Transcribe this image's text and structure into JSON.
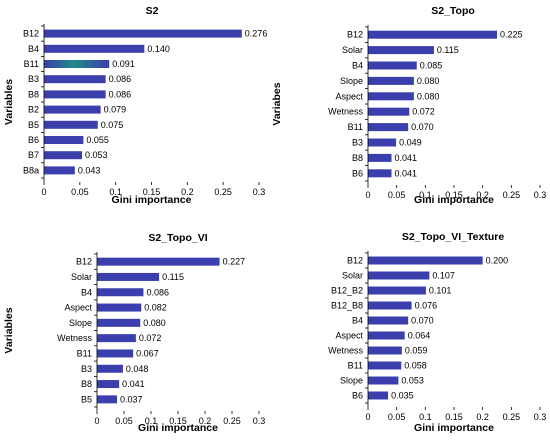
{
  "chart_data": [
    {
      "type": "bar",
      "orientation": "horizontal",
      "title": "S2",
      "xlabel": "Gini importance",
      "ylabel": "Variables",
      "xlim": [
        0,
        0.3
      ],
      "xticks": [
        "0",
        "0.05",
        "0.1",
        "0.15",
        "0.2",
        "0.25",
        "0.3"
      ],
      "grid": false,
      "categories": [
        "B12",
        "B4",
        "B11",
        "B3",
        "B8",
        "B2",
        "B5",
        "B6",
        "B7",
        "B8a"
      ],
      "values": [
        0.276,
        0.14,
        0.091,
        0.086,
        0.086,
        0.079,
        0.075,
        0.055,
        0.053,
        0.043
      ],
      "labels": [
        "0.276",
        "0.140",
        "0.091",
        "0.086",
        "0.086",
        "0.079",
        "0.075",
        "0.055",
        "0.053",
        "0.043"
      ]
    },
    {
      "type": "bar",
      "orientation": "horizontal",
      "title": "S2_Topo",
      "xlabel": "Gini importance",
      "ylabel": "Variabes",
      "xlim": [
        0,
        0.3
      ],
      "xticks": [
        "0",
        "0.05",
        "0.1",
        "0.15",
        "0.2",
        "0.25",
        "0.3"
      ],
      "grid": false,
      "categories": [
        "B12",
        "Solar",
        "B4",
        "Slope",
        "Aspect",
        "Wetness",
        "B11",
        "B3",
        "B8",
        "B6"
      ],
      "values": [
        0.225,
        0.115,
        0.085,
        0.08,
        0.08,
        0.072,
        0.07,
        0.049,
        0.041,
        0.041
      ],
      "labels": [
        "0.225",
        "0.115",
        "0.085",
        "0.080",
        "0.080",
        "0.072",
        "0.070",
        "0.049",
        "0.041",
        "0.041"
      ]
    },
    {
      "type": "bar",
      "orientation": "horizontal",
      "title": "S2_Topo_VI",
      "xlabel": "Gini importance",
      "ylabel": "Variables",
      "xlim": [
        0,
        0.3
      ],
      "xticks": [
        "0",
        "0.05",
        "0.1",
        "0.15",
        "0.2",
        "0.25",
        "0.3"
      ],
      "grid": false,
      "categories": [
        "B12",
        "Solar",
        "B4",
        "Aspect",
        "Slope",
        "Wetness",
        "B11",
        "B3",
        "B8",
        "B5"
      ],
      "values": [
        0.227,
        0.115,
        0.086,
        0.082,
        0.08,
        0.072,
        0.067,
        0.048,
        0.041,
        0.037
      ],
      "labels": [
        "0.227",
        "0.115",
        "0.086",
        "0.082",
        "0.080",
        "0.072",
        "0.067",
        "0.048",
        "0.041",
        "0.037"
      ]
    },
    {
      "type": "bar",
      "orientation": "horizontal",
      "title": "S2_Topo_VI_Texture",
      "xlabel": "Gini importance",
      "ylabel": "",
      "xlim": [
        0,
        0.3
      ],
      "xticks": [
        "0",
        "0.05",
        "0.1",
        "0.15",
        "0.2",
        "0.25",
        "0.3"
      ],
      "grid": false,
      "categories": [
        "B12",
        "Solar",
        "B12_B2",
        "B12_B8",
        "B4",
        "Aspect",
        "Wetness",
        "B11",
        "Slope",
        "B6"
      ],
      "values": [
        0.2,
        0.107,
        0.101,
        0.076,
        0.07,
        0.064,
        0.059,
        0.058,
        0.053,
        0.035
      ],
      "labels": [
        "0.200",
        "0.107",
        "0.101",
        "0.076",
        "0.070",
        "0.064",
        "0.059",
        "0.058",
        "0.053",
        "0.035"
      ]
    }
  ],
  "colors": {
    "bar": "#3b3fae",
    "bar_highlight": "#1f8a8a",
    "text": "#000000",
    "axis": "#000000"
  },
  "highlight": {
    "panel": 0,
    "category": "B11"
  }
}
